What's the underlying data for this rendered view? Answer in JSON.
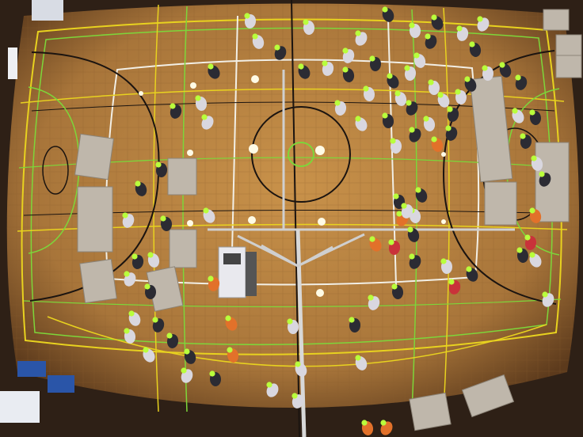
{
  "scene": {
    "kind": "overhead fisheye photograph",
    "colors": {
      "floor": "#b5813e",
      "floor_dark": "#6b4420",
      "wall": "#3a2a1c",
      "line_white": "#f2efe6",
      "line_yellow": "#e8d21f",
      "line_green": "#7dd63a",
      "line_black": "#1b1410",
      "partition": "#bfb7ab",
      "cap_green": "#b9ff3c",
      "person_dark": "#2b2b33",
      "person_light": "#d9d7df",
      "person_orange": "#e2712a",
      "person_red": "#c9323a"
    }
  },
  "banner": {
    "text": ""
  }
}
